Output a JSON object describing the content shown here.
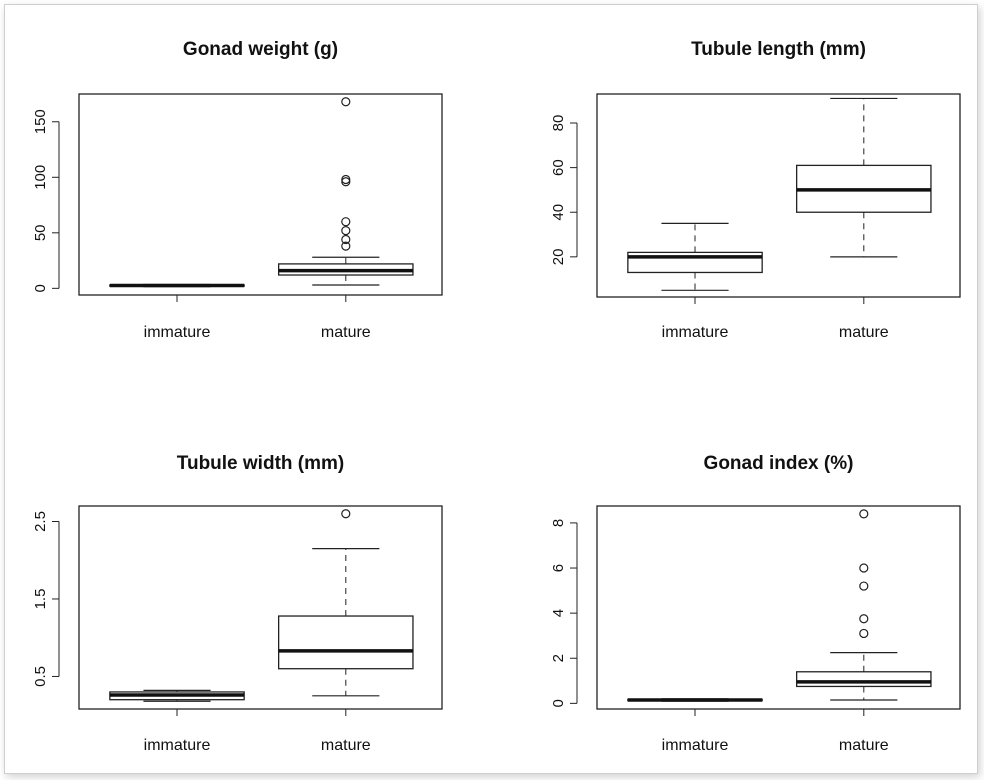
{
  "chart_data": [
    {
      "type": "boxplot",
      "title": "Gonad weight (g)",
      "categories": [
        "immature",
        "mature"
      ],
      "ylim": [
        -6,
        175
      ],
      "yticks": [
        {
          "v": 0,
          "label": "0"
        },
        {
          "v": 50,
          "label": "50"
        },
        {
          "v": 100,
          "label": "100"
        },
        {
          "v": 150,
          "label": "150"
        }
      ],
      "boxes": [
        {
          "category": "immature",
          "whisker_low": 1.5,
          "q1": 2,
          "median": 2.5,
          "q3": 3,
          "whisker_high": 3.5,
          "outliers": []
        },
        {
          "category": "mature",
          "whisker_low": 3,
          "q1": 12,
          "median": 16,
          "q3": 22,
          "whisker_high": 28,
          "outliers": [
            38,
            44,
            52,
            60,
            96,
            98,
            168
          ]
        }
      ]
    },
    {
      "type": "boxplot",
      "title": "Tubule length (mm)",
      "categories": [
        "immature",
        "mature"
      ],
      "ylim": [
        2,
        93
      ],
      "yticks": [
        {
          "v": 20,
          "label": "20"
        },
        {
          "v": 40,
          "label": "40"
        },
        {
          "v": 60,
          "label": "60"
        },
        {
          "v": 80,
          "label": "80"
        }
      ],
      "boxes": [
        {
          "category": "immature",
          "whisker_low": 5,
          "q1": 13,
          "median": 20,
          "q3": 22,
          "whisker_high": 35,
          "outliers": []
        },
        {
          "category": "mature",
          "whisker_low": 20,
          "q1": 40,
          "median": 50,
          "q3": 61,
          "whisker_high": 91,
          "outliers": []
        }
      ]
    },
    {
      "type": "boxplot",
      "title": "Tubule width (mm)",
      "categories": [
        "immature",
        "mature"
      ],
      "ylim": [
        0.08,
        2.7
      ],
      "yticks": [
        {
          "v": 0.5,
          "label": "0.5"
        },
        {
          "v": 1.5,
          "label": "1.5"
        },
        {
          "v": 2.5,
          "label": "2.5"
        }
      ],
      "boxes": [
        {
          "category": "immature",
          "whisker_low": 0.18,
          "q1": 0.2,
          "median": 0.26,
          "q3": 0.3,
          "whisker_high": 0.32,
          "outliers": []
        },
        {
          "category": "mature",
          "whisker_low": 0.25,
          "q1": 0.6,
          "median": 0.83,
          "q3": 1.28,
          "whisker_high": 2.15,
          "outliers": [
            2.6
          ]
        }
      ]
    },
    {
      "type": "boxplot",
      "title": "Gonad index (%)",
      "categories": [
        "immature",
        "mature"
      ],
      "ylim": [
        -0.25,
        8.75
      ],
      "yticks": [
        {
          "v": 0,
          "label": "0"
        },
        {
          "v": 2,
          "label": "2"
        },
        {
          "v": 4,
          "label": "4"
        },
        {
          "v": 6,
          "label": "6"
        },
        {
          "v": 8,
          "label": "8"
        }
      ],
      "boxes": [
        {
          "category": "immature",
          "whisker_low": 0.1,
          "q1": 0.12,
          "median": 0.15,
          "q3": 0.18,
          "whisker_high": 0.2,
          "outliers": []
        },
        {
          "category": "mature",
          "whisker_low": 0.15,
          "q1": 0.75,
          "median": 0.95,
          "q3": 1.4,
          "whisker_high": 2.25,
          "outliers": [
            3.1,
            3.75,
            5.2,
            6.0,
            8.4
          ]
        }
      ]
    }
  ]
}
